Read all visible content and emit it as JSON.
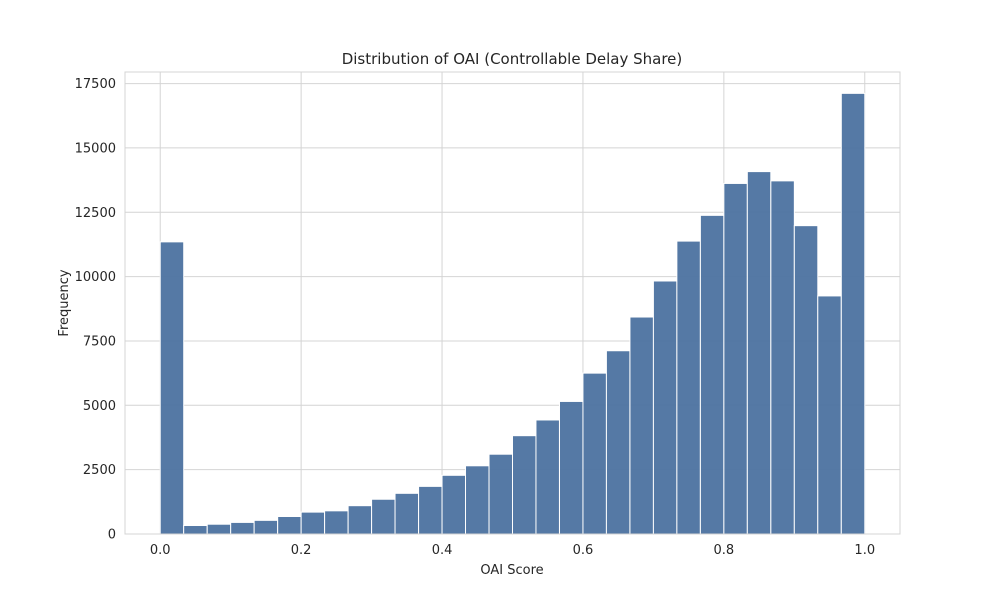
{
  "chart_data": {
    "type": "bar",
    "title": "Distribution of OAI (Controllable Delay Share)",
    "xlabel": "OAI Score",
    "ylabel": "Frequency",
    "xlim": [
      -0.05,
      1.05
    ],
    "ylim": [
      0,
      17950
    ],
    "x_ticks": [
      0.0,
      0.2,
      0.4,
      0.6,
      0.8,
      1.0
    ],
    "x_tick_labels": [
      "0.0",
      "0.2",
      "0.4",
      "0.6",
      "0.8",
      "1.0"
    ],
    "y_ticks": [
      0,
      2500,
      5000,
      7500,
      10000,
      12500,
      15000,
      17500
    ],
    "y_tick_labels": [
      "0",
      "2500",
      "5000",
      "7500",
      "10000",
      "12500",
      "15000",
      "17500"
    ],
    "bin_width": 0.03333,
    "bins_start": [
      0.0,
      0.0333,
      0.0667,
      0.1,
      0.1333,
      0.1667,
      0.2,
      0.2333,
      0.2667,
      0.3,
      0.3333,
      0.3667,
      0.4,
      0.4333,
      0.4667,
      0.5,
      0.5333,
      0.5667,
      0.6,
      0.6333,
      0.6667,
      0.7,
      0.7333,
      0.7667,
      0.8,
      0.8333,
      0.8667,
      0.9,
      0.9333,
      0.9667
    ],
    "values": [
      11350,
      330,
      380,
      450,
      530,
      680,
      850,
      900,
      1100,
      1350,
      1580,
      1850,
      2280,
      2650,
      3100,
      3820,
      4430,
      5150,
      6250,
      7120,
      8430,
      9830,
      11380,
      12380,
      13620,
      14080,
      13720,
      11980,
      9250,
      17120
    ],
    "bar_color": "#4c72a0",
    "grid": true,
    "legend": "none"
  }
}
